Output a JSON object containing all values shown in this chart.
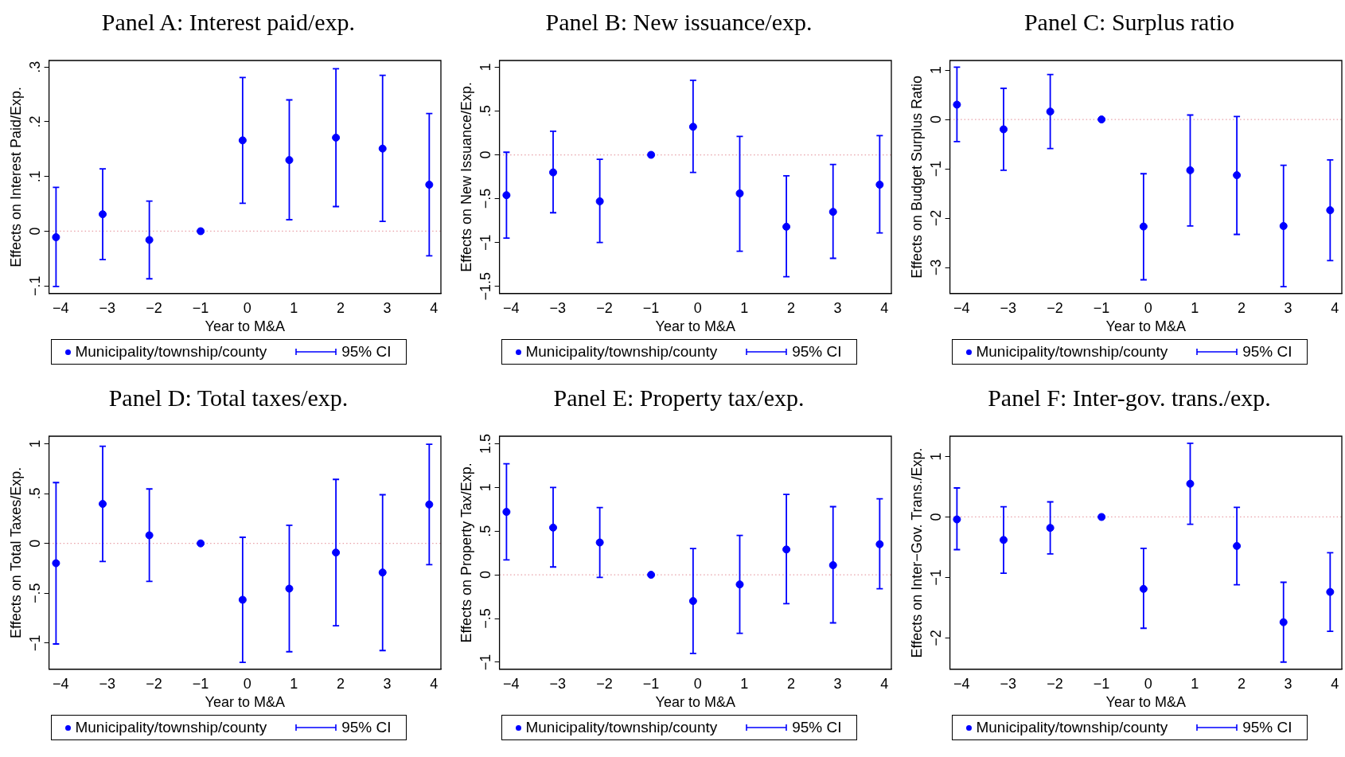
{
  "chart_data": [
    {
      "type": "scatter",
      "title": "Panel A: Interest paid/exp.",
      "xlabel": "Year to M&A",
      "ylabel": "Effects on Interest Paid/Exp.",
      "x": [
        -4.1,
        -3.1,
        -2.1,
        -1,
        -0.1,
        0.9,
        1.9,
        2.9,
        3.9
      ],
      "series": [
        {
          "name": "Municipality/township/county",
          "color": "#0000ff",
          "values": [
            -0.011,
            0.031,
            -0.016,
            0,
            0.166,
            0.13,
            0.171,
            0.151,
            0.085
          ],
          "errors": [
            [
              -0.101,
              0.08
            ],
            [
              -0.052,
              0.114
            ],
            [
              -0.087,
              0.055
            ],
            null,
            [
              0.051,
              0.281
            ],
            [
              0.021,
              0.24
            ],
            [
              0.045,
              0.297
            ],
            [
              0.018,
              0.285
            ],
            [
              -0.045,
              0.215
            ]
          ]
        }
      ],
      "xlim": [
        -4.25,
        4.15
      ],
      "xticks": [
        {
          "value": -4,
          "label": "−4"
        },
        {
          "value": -3,
          "label": "−3"
        },
        {
          "value": -2,
          "label": "−2"
        },
        {
          "value": -1,
          "label": "−1"
        },
        0,
        1,
        2,
        3,
        4
      ],
      "ylim": [
        -0.114,
        0.312
      ],
      "yticks": [
        {
          "value": -0.1,
          "label": "−.1"
        },
        0,
        {
          "value": 0.1,
          "label": ".1"
        },
        {
          "value": 0.2,
          "label": ".2"
        },
        {
          "value": 0.3,
          "label": ".3"
        }
      ],
      "ref_lines": [
        {
          "axis": "y",
          "value": 0,
          "color": "#e8a0a8",
          "line_style": "dotted"
        }
      ],
      "legend": "bottom",
      "marker": "circle",
      "annotations": [
        "95% CI"
      ]
    },
    {
      "type": "scatter",
      "title": "Panel B: New issuance/exp.",
      "xlabel": "Year to M&A",
      "ylabel": "Effects on New Issuance/Exp.",
      "x": [
        -4.1,
        -3.1,
        -2.1,
        -1,
        -0.1,
        0.9,
        1.9,
        2.9,
        3.9
      ],
      "series": [
        {
          "name": "Municipality/township/county",
          "color": "#0000ff",
          "values": [
            -0.46,
            -0.2,
            -0.53,
            0,
            0.32,
            -0.44,
            -0.82,
            -0.65,
            -0.34
          ],
          "errors": [
            [
              -0.95,
              0.03
            ],
            [
              -0.66,
              0.27
            ],
            [
              -1.0,
              -0.05
            ],
            null,
            [
              -0.2,
              0.85
            ],
            [
              -1.1,
              0.21
            ],
            [
              -1.39,
              -0.24
            ],
            [
              -1.18,
              -0.11
            ],
            [
              -0.89,
              0.22
            ]
          ]
        }
      ],
      "xlim": [
        -4.25,
        4.15
      ],
      "xticks": [
        {
          "value": -4,
          "label": "−4"
        },
        {
          "value": -3,
          "label": "−3"
        },
        {
          "value": -2,
          "label": "−2"
        },
        {
          "value": -1,
          "label": "−1"
        },
        0,
        1,
        2,
        3,
        4
      ],
      "ylim": [
        -1.582,
        1.076
      ],
      "yticks": [
        {
          "value": -1.5,
          "label": "−1.5"
        },
        {
          "value": -1,
          "label": "−1"
        },
        {
          "value": -0.5,
          "label": "−.5"
        },
        0,
        {
          "value": 0.5,
          "label": ".5"
        },
        1
      ],
      "ref_lines": [
        {
          "axis": "y",
          "value": 0,
          "color": "#e8a0a8",
          "line_style": "dotted"
        }
      ],
      "legend": "bottom",
      "marker": "circle",
      "annotations": [
        "95% CI"
      ]
    },
    {
      "type": "scatter",
      "title": "Panel C: Surplus ratio",
      "xlabel": "Year to M&A",
      "ylabel": "Effects on Budget Surplus Ratio",
      "x": [
        -4.1,
        -3.1,
        -2.1,
        -1,
        -0.1,
        0.9,
        1.9,
        2.9,
        3.9
      ],
      "series": [
        {
          "name": "Municipality/township/county",
          "color": "#0000ff",
          "values": [
            0.3,
            -0.2,
            0.16,
            0,
            -2.17,
            -1.03,
            -1.13,
            -2.16,
            -1.84
          ],
          "errors": [
            [
              -0.45,
              1.06
            ],
            [
              -1.03,
              0.63
            ],
            [
              -0.59,
              0.91
            ],
            null,
            [
              -3.25,
              -1.1
            ],
            [
              -2.16,
              0.09
            ],
            [
              -2.33,
              0.06
            ],
            [
              -3.39,
              -0.93
            ],
            [
              -2.86,
              -0.82
            ]
          ]
        }
      ],
      "xlim": [
        -4.25,
        4.15
      ],
      "xticks": [
        {
          "value": -4,
          "label": "−4"
        },
        {
          "value": -3,
          "label": "−3"
        },
        {
          "value": -2,
          "label": "−2"
        },
        {
          "value": -1,
          "label": "−1"
        },
        0,
        1,
        2,
        3,
        4
      ],
      "ylim": [
        -3.529,
        1.195
      ],
      "yticks": [
        {
          "value": -3,
          "label": "−3"
        },
        {
          "value": -2,
          "label": "−2"
        },
        {
          "value": -1,
          "label": "−1"
        },
        0,
        1
      ],
      "ref_lines": [
        {
          "axis": "y",
          "value": 0,
          "color": "#e8a0a8",
          "line_style": "dotted"
        }
      ],
      "legend": "bottom",
      "marker": "circle",
      "annotations": [
        "95% CI"
      ]
    },
    {
      "type": "scatter",
      "title": "Panel D: Total taxes/exp.",
      "xlabel": "Year to M&A",
      "ylabel": "Effects on Total Taxes/Exp.",
      "x": [
        -4.1,
        -3.1,
        -2.1,
        -1,
        -0.1,
        0.9,
        1.9,
        2.9,
        3.9
      ],
      "series": [
        {
          "name": "Municipality/township/county",
          "color": "#0000ff",
          "values": [
            -0.199,
            0.396,
            0.081,
            0,
            -0.566,
            -0.454,
            -0.092,
            -0.292,
            0.39
          ],
          "errors": [
            [
              -1.009,
              0.61
            ],
            [
              -0.182,
              0.974
            ],
            [
              -0.382,
              0.546
            ],
            null,
            [
              -1.194,
              0.061
            ],
            [
              -1.087,
              0.182
            ],
            [
              -0.827,
              0.642
            ],
            [
              -1.075,
              0.488
            ],
            [
              -0.214,
              0.994
            ]
          ]
        }
      ],
      "xlim": [
        -4.25,
        4.15
      ],
      "xticks": [
        {
          "value": -4,
          "label": "−4"
        },
        {
          "value": -3,
          "label": "−3"
        },
        {
          "value": -2,
          "label": "−2"
        },
        {
          "value": -1,
          "label": "−1"
        },
        0,
        1,
        2,
        3,
        4
      ],
      "ylim": [
        -1.263,
        1.075
      ],
      "yticks": [
        {
          "value": -1,
          "label": "−1"
        },
        {
          "value": -0.5,
          "label": "−.5"
        },
        0,
        {
          "value": 0.5,
          "label": ".5"
        },
        1
      ],
      "ref_lines": [
        {
          "axis": "y",
          "value": 0,
          "color": "#e8a0a8",
          "line_style": "dotted"
        }
      ],
      "legend": "bottom",
      "marker": "circle",
      "annotations": [
        "95% CI"
      ]
    },
    {
      "type": "scatter",
      "title": "Panel E: Property tax/exp.",
      "xlabel": "Year to M&A",
      "ylabel": "Effects on Property Tax/Exp.",
      "x": [
        -4.1,
        -3.1,
        -2.1,
        -1,
        -0.1,
        0.9,
        1.9,
        2.9,
        3.9
      ],
      "series": [
        {
          "name": "Municipality/township/county",
          "color": "#0000ff",
          "values": [
            0.72,
            0.54,
            0.37,
            0,
            -0.3,
            -0.11,
            0.29,
            0.11,
            0.35
          ],
          "errors": [
            [
              0.17,
              1.27
            ],
            [
              0.09,
              1.0
            ],
            [
              -0.03,
              0.77
            ],
            null,
            [
              -0.9,
              0.3
            ],
            [
              -0.67,
              0.45
            ],
            [
              -0.33,
              0.92
            ],
            [
              -0.55,
              0.78
            ],
            [
              -0.16,
              0.87
            ]
          ]
        }
      ],
      "xlim": [
        -4.25,
        4.15
      ],
      "xticks": [
        {
          "value": -4,
          "label": "−4"
        },
        {
          "value": -3,
          "label": "−3"
        },
        {
          "value": -2,
          "label": "−2"
        },
        {
          "value": -1,
          "label": "−1"
        },
        0,
        1,
        2,
        3,
        4
      ],
      "ylim": [
        -1.081,
        1.586
      ],
      "yticks": [
        {
          "value": -1,
          "label": "−1"
        },
        {
          "value": -0.5,
          "label": "−.5"
        },
        0,
        {
          "value": 0.5,
          "label": ".5"
        },
        1,
        1.5
      ],
      "ref_lines": [
        {
          "axis": "y",
          "value": 0,
          "color": "#e8a0a8",
          "line_style": "dotted"
        }
      ],
      "legend": "bottom",
      "marker": "circle",
      "annotations": [
        "95% CI"
      ]
    },
    {
      "type": "scatter",
      "title": "Panel F: Inter-gov. trans./exp.",
      "xlabel": "Year to M&A",
      "ylabel": "Effects on Inter−Gov. Trans./Exp.",
      "x": [
        -4.1,
        -3.1,
        -2.1,
        -1,
        -0.1,
        0.9,
        1.9,
        2.9,
        3.9
      ],
      "series": [
        {
          "name": "Municipality/township/county",
          "color": "#0000ff",
          "values": [
            -0.04,
            -0.38,
            -0.18,
            0,
            -1.19,
            0.55,
            -0.48,
            -1.74,
            -1.24
          ],
          "errors": [
            [
              -0.54,
              0.48
            ],
            [
              -0.93,
              0.17
            ],
            [
              -0.61,
              0.25
            ],
            null,
            [
              -1.84,
              -0.52
            ],
            [
              -0.12,
              1.22
            ],
            [
              -1.12,
              0.16
            ],
            [
              -2.4,
              -1.08
            ],
            [
              -1.89,
              -0.59
            ]
          ]
        }
      ],
      "xlim": [
        -4.25,
        4.15
      ],
      "xticks": [
        {
          "value": -4,
          "label": "−4"
        },
        {
          "value": -3,
          "label": "−3"
        },
        {
          "value": -2,
          "label": "−2"
        },
        {
          "value": -1,
          "label": "−1"
        },
        0,
        1,
        2,
        3,
        4
      ],
      "ylim": [
        -2.519,
        1.336
      ],
      "yticks": [
        {
          "value": -2,
          "label": "−2"
        },
        {
          "value": -1,
          "label": "−1"
        },
        0,
        1
      ],
      "ref_lines": [
        {
          "axis": "y",
          "value": 0,
          "color": "#e8a0a8",
          "line_style": "dotted"
        }
      ],
      "legend": "bottom",
      "marker": "circle",
      "annotations": [
        "95% CI"
      ]
    }
  ]
}
